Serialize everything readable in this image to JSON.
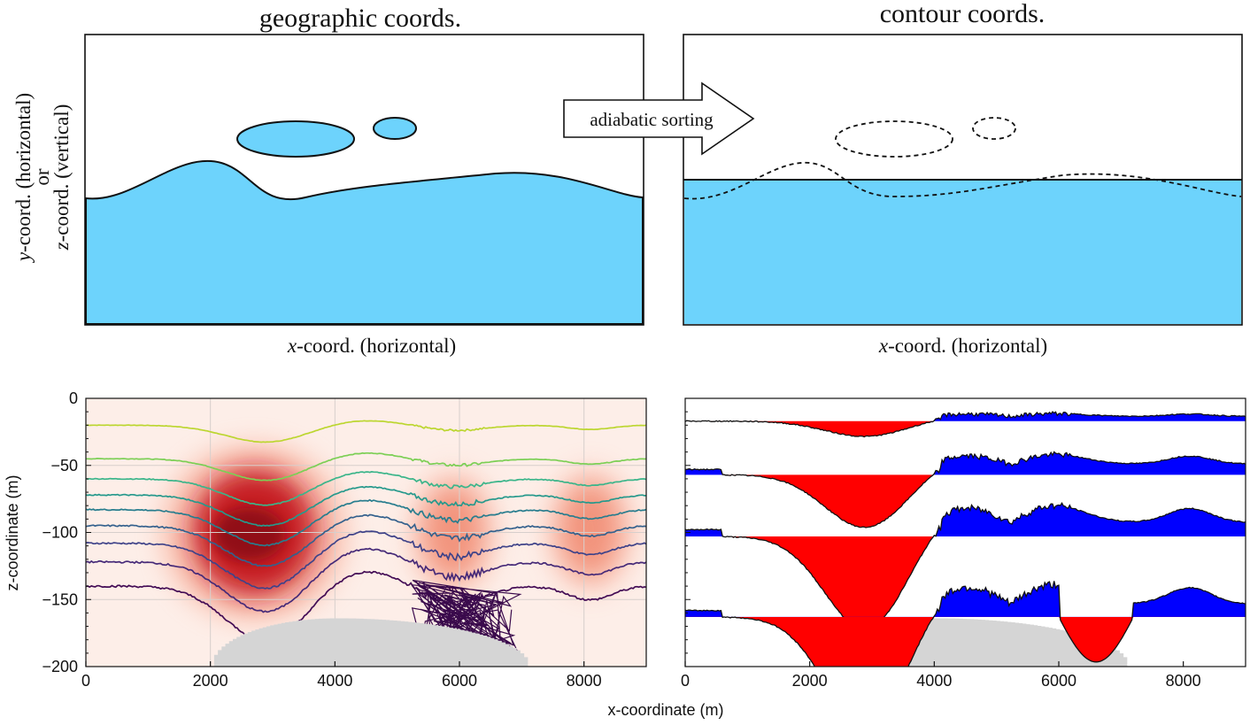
{
  "top": {
    "left_title": "geographic coords.",
    "right_title": "contour coords.",
    "arrow_label": "adiabatic sorting",
    "xlabel_italic": "x",
    "xlabel_rest": "-coord. (horizontal)",
    "ylabel_line1_italic": "y",
    "ylabel_line1_rest": "-coord. (horizontal)",
    "ylabel_line2": "or",
    "ylabel_line3_italic": "z",
    "ylabel_line3_rest": "-coord. (vertical)",
    "colors": {
      "fill": "#6dd3fc",
      "stroke": "#111111"
    }
  },
  "chart_data": [
    {
      "type": "contour",
      "panel": "bottom-left",
      "ylabel": "z-coordinate (m)",
      "xlim": [
        0,
        9000
      ],
      "ylim": [
        -200,
        0
      ],
      "xticks": [
        0,
        2000,
        4000,
        6000,
        8000
      ],
      "yticks": [
        0,
        -50,
        -100,
        -150,
        -200
      ],
      "grid": true,
      "background": "#fdeee8",
      "heat_blobs": [
        {
          "x": 2700,
          "z": -100,
          "intensity": 1.0
        },
        {
          "x": 5900,
          "z": -100,
          "intensity": 0.45
        },
        {
          "x": 8100,
          "z": -98,
          "intensity": 0.5
        }
      ],
      "contours": [
        {
          "base": -20,
          "color": "#bcd630"
        },
        {
          "base": -45,
          "color": "#7ccf55"
        },
        {
          "base": -60,
          "color": "#3bb58a"
        },
        {
          "base": -72,
          "color": "#26998c"
        },
        {
          "base": -83,
          "color": "#287d8e"
        },
        {
          "base": -95,
          "color": "#34618d"
        },
        {
          "base": -108,
          "color": "#3f4389"
        },
        {
          "base": -122,
          "color": "#462a78"
        },
        {
          "base": -140,
          "color": "#430c55"
        }
      ],
      "topography": {
        "x_start": 2000,
        "x_end": 7100,
        "peak_x": 4000,
        "peak_z": -164,
        "color": "#d5d5d5"
      }
    },
    {
      "type": "area",
      "panel": "bottom-right",
      "xlim": [
        0,
        9000
      ],
      "ylim": [
        -200,
        0
      ],
      "xticks": [
        0,
        2000,
        4000,
        6000,
        8000
      ],
      "baselines": [
        -17,
        -57,
        -103,
        -163
      ],
      "positive_color": "#0000ff",
      "negative_color": "#ff0000",
      "topography": {
        "x_start": 2000,
        "x_end": 7100,
        "peak_x": 4000,
        "peak_z": -164,
        "color": "#d5d5d5"
      }
    }
  ],
  "bottom": {
    "xlabel": "x-coordinate (m)",
    "ylabel": "z-coordinate (m)",
    "xtick_labels": [
      "0",
      "2000",
      "4000",
      "6000",
      "8000"
    ],
    "ytick_labels": [
      "0",
      "−50",
      "−100",
      "−150",
      "−200"
    ]
  }
}
